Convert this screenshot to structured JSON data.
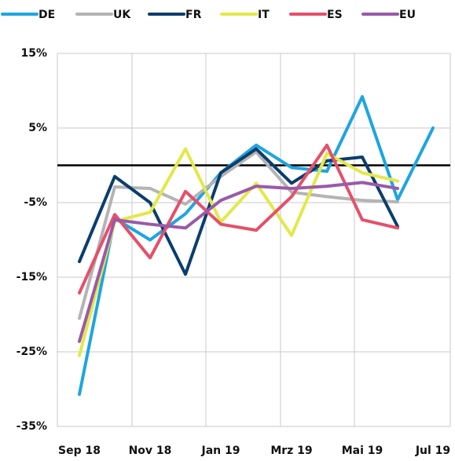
{
  "chart_data": {
    "type": "line",
    "categories": [
      "Sep 18",
      null,
      "Nov 18",
      null,
      "Jan 19",
      null,
      "Mrz 19",
      null,
      "Mai 19",
      null,
      "Jul 19"
    ],
    "series": [
      {
        "name": "DE",
        "color": "#1ea5e0",
        "values": [
          -30.7,
          -7.1,
          -10,
          -6.5,
          -1,
          2.7,
          -0.3,
          -0.8,
          9.2,
          -4.6,
          5
        ]
      },
      {
        "name": "UK",
        "color": "#b4b4b4",
        "values": [
          -20.5,
          -2.9,
          -3.1,
          -5.2,
          -1.5,
          1.8,
          -3.6,
          -4.2,
          -4.7,
          -4.9,
          null
        ]
      },
      {
        "name": "FR",
        "color": "#0b3d6e",
        "values": [
          -12.9,
          -1.5,
          -5,
          -14.6,
          -1,
          2.2,
          -2.4,
          0.6,
          1.1,
          -8.2,
          null
        ]
      },
      {
        "name": "IT",
        "color": "#e3e84a",
        "values": [
          -25.5,
          -7.5,
          -6.3,
          2.2,
          -7.6,
          -2.4,
          -9.4,
          1.6,
          -1,
          -2.1,
          null
        ]
      },
      {
        "name": "ES",
        "color": "#e5506a",
        "values": [
          -17.1,
          -6.6,
          -12.4,
          -3.5,
          -7.9,
          -8.7,
          -4.2,
          2.7,
          -7.3,
          -8.4,
          null
        ]
      },
      {
        "name": "EU",
        "color": "#9a5aa8",
        "values": [
          -23.6,
          -7.3,
          -7.9,
          -8.4,
          -4.7,
          -2.8,
          -3.1,
          -2.8,
          -2.3,
          -3.1,
          null
        ]
      }
    ],
    "ylim": [
      -35,
      15
    ],
    "yticks": [
      {
        "value": -35,
        "label": "-35%"
      },
      {
        "value": -25,
        "label": "-25%"
      },
      {
        "value": -15,
        "label": "-15%"
      },
      {
        "value": -5,
        "label": "-5%"
      },
      {
        "value": 5,
        "label": "5%"
      },
      {
        "value": 15,
        "label": "15%"
      }
    ],
    "reference_line": 0,
    "grid": true,
    "legend": "top"
  }
}
